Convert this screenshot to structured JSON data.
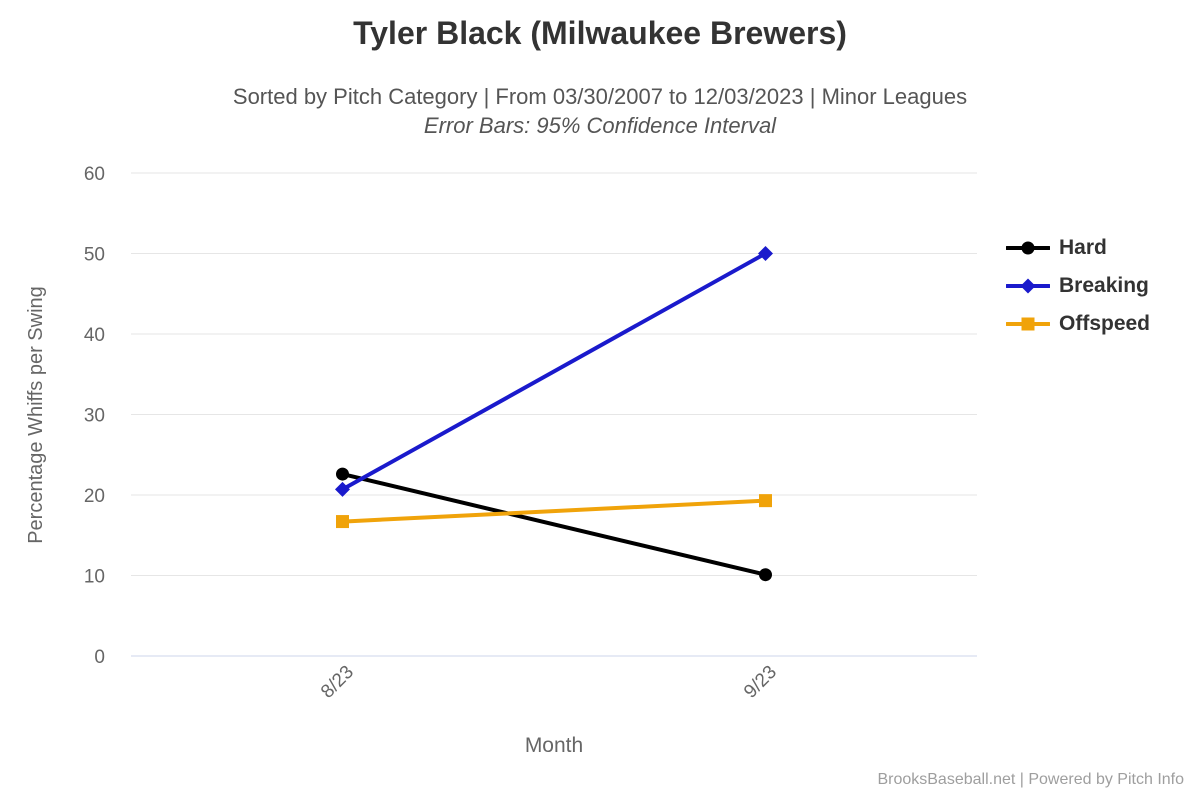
{
  "title": "Tyler Black (Milwaukee Brewers)",
  "subtitle": "Sorted by Pitch Category | From 03/30/2007 to 12/03/2023 | Minor Leagues",
  "subtitle_note": "Error Bars: 95% Confidence Interval",
  "footer": "BrooksBaseball.net | Powered by Pitch Info",
  "chart_data": {
    "type": "line",
    "title": "Tyler Black (Milwaukee Brewers)",
    "xlabel": "Month",
    "ylabel": "Percentage Whiffs per Swing",
    "categories": [
      "8/23",
      "9/23"
    ],
    "series": [
      {
        "name": "Hard",
        "color": "#000000",
        "marker": "circle",
        "values": [
          22.6,
          10.1
        ]
      },
      {
        "name": "Breaking",
        "color": "#1a1acc",
        "marker": "diamond",
        "values": [
          20.7,
          50.0
        ]
      },
      {
        "name": "Offspeed",
        "color": "#f0a30a",
        "marker": "square",
        "values": [
          16.7,
          19.3
        ]
      }
    ],
    "ylim": [
      0,
      60
    ],
    "yticks": [
      0,
      10,
      20,
      30,
      40,
      50,
      60
    ],
    "grid": true,
    "legend_position": "right"
  },
  "colors": {
    "background": "#ffffff",
    "title": "#333333",
    "subtitle": "#555555",
    "axis_text": "#666666",
    "grid_line": "#e6e6e6",
    "axis_line": "#ccd6eb",
    "legend_text": "#333333",
    "footer_text": "#9e9e9e"
  }
}
